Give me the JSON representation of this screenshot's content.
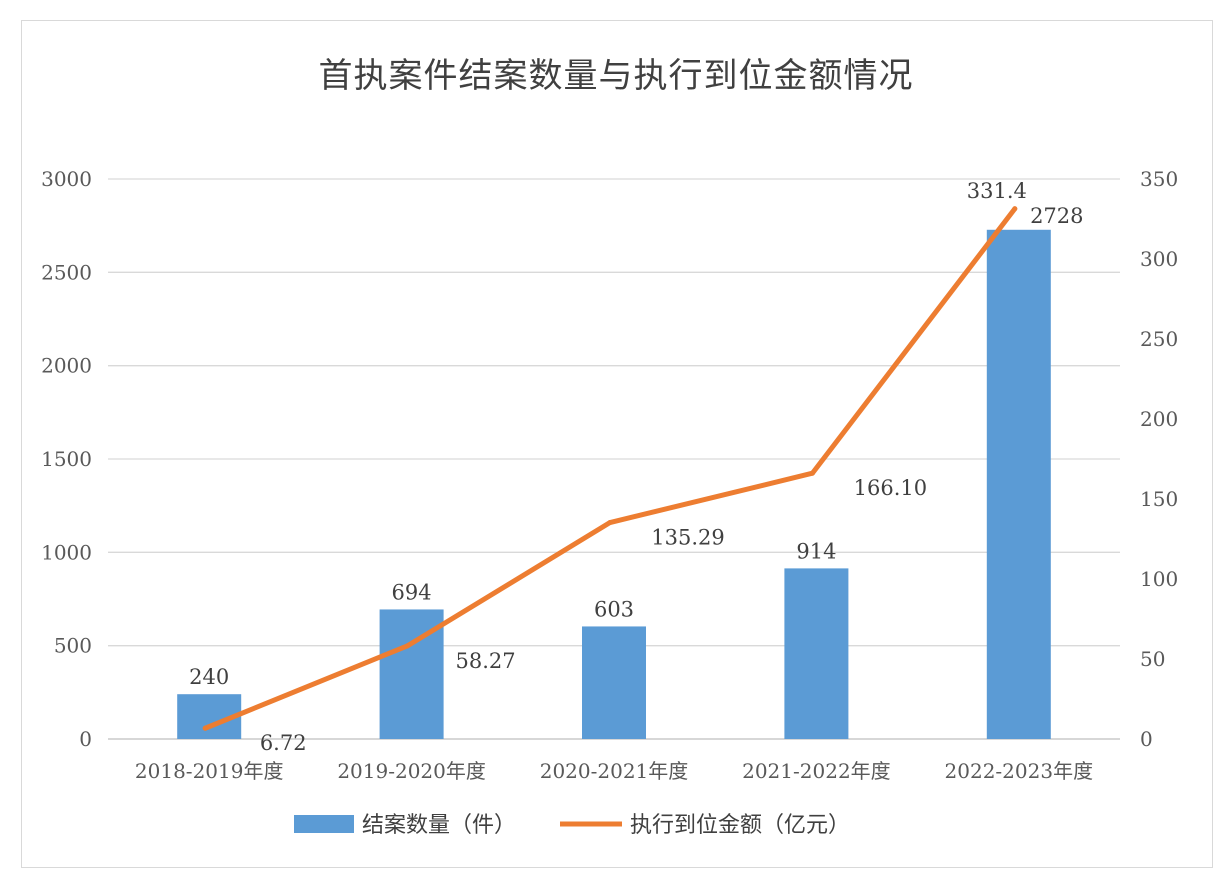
{
  "chart_data": {
    "type": "bar+line",
    "title": "首执案件结案数量与执行到位金额情况",
    "categories": [
      "2018-2019年度",
      "2019-2020年度",
      "2020-2021年度",
      "2021-2022年度",
      "2022-2023年度"
    ],
    "series": [
      {
        "name": "结案数量（件）",
        "type": "bar",
        "axis": "left",
        "color": "#5b9bd5",
        "values": [
          240,
          694,
          603,
          914,
          2728
        ],
        "labels": [
          "240",
          "694",
          "603",
          "914",
          "2728"
        ]
      },
      {
        "name": "执行到位金额（亿元）",
        "type": "line",
        "axis": "right",
        "color": "#ed7d31",
        "values": [
          6.72,
          58.27,
          135.29,
          166.1,
          331.4
        ],
        "labels": [
          "6.72",
          "58.27",
          "135.29",
          "166.10",
          "331.4"
        ]
      }
    ],
    "y_left": {
      "min": 0,
      "max": 3000,
      "ticks": [
        0,
        500,
        1000,
        1500,
        2000,
        2500,
        3000
      ]
    },
    "y_right": {
      "min": 0,
      "max": 350,
      "ticks": [
        0,
        50,
        100,
        150,
        200,
        250,
        300,
        350
      ]
    },
    "grid": true,
    "legend_position": "bottom"
  }
}
